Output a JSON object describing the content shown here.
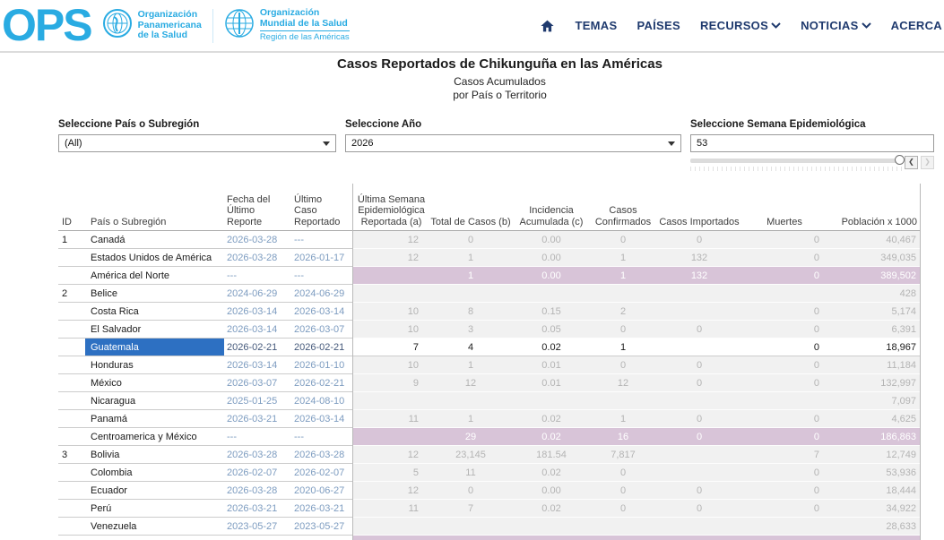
{
  "colors": {
    "brand_blue": "#29abe2",
    "nav_navy": "#1f3a6e",
    "selected_blue": "#2d70c2",
    "subtotal_purple": "#d8c4d8",
    "date_blue": "#7d9cc0"
  },
  "header": {
    "logo_text": "OPS",
    "org1": {
      "line1": "Organización",
      "line2": "Panamericana",
      "line3": "de la Salud"
    },
    "org2": {
      "line1": "Organización",
      "line2": "Mundial de la Salud",
      "sub": "Región de las Américas"
    },
    "nav": [
      {
        "label": "TEMAS",
        "chevron": false
      },
      {
        "label": "PAÍSES",
        "chevron": false
      },
      {
        "label": "RECURSOS",
        "chevron": true
      },
      {
        "label": "NOTICIAS",
        "chevron": true
      },
      {
        "label": "ACERCA",
        "chevron": false
      }
    ]
  },
  "title": {
    "main": "Casos Reportados de Chikunguña en las Américas",
    "sub1": "Casos Acumulados",
    "sub2": "por País o Territorio"
  },
  "filters": {
    "country": {
      "label": "Seleccione País o Subregión",
      "value": "(All)"
    },
    "year": {
      "label": "Seleccione Año",
      "value": "2026"
    },
    "week": {
      "label": "Seleccione Semana Epidemiológica",
      "value": "53"
    }
  },
  "table": {
    "columns": [
      {
        "key": "id",
        "label": "ID"
      },
      {
        "key": "country",
        "label": "País o Subregión"
      },
      {
        "key": "fecha",
        "label": "Fecha del\nÚltimo Reporte"
      },
      {
        "key": "ultimo_caso",
        "label": "Último\nCaso\nReportado"
      },
      {
        "key": "semana",
        "label": "Última Semana\nEpidemiológica\nReportada (a)"
      },
      {
        "key": "total",
        "label": "Total de Casos (b)"
      },
      {
        "key": "incidencia",
        "label": "Incidencia\nAcumulada (c)"
      },
      {
        "key": "confirmados",
        "label": "Casos\nConfirmados"
      },
      {
        "key": "importados",
        "label": "Casos Importados"
      },
      {
        "key": "muertes",
        "label": "Muertes"
      },
      {
        "key": "poblacion",
        "label": "Población x 1000"
      }
    ],
    "rows": [
      {
        "style": "normal",
        "id": "1",
        "country": "Canadá",
        "fecha": "2026-03-28",
        "ultimo_caso": "---",
        "semana": "12",
        "total": "0",
        "incidencia": "0.00",
        "confirmados": "0",
        "importados": "0",
        "muertes": "0",
        "poblacion": "40,467"
      },
      {
        "style": "normal",
        "id": "",
        "country": "Estados Unidos de América",
        "fecha": "2026-03-28",
        "ultimo_caso": "2026-01-17",
        "semana": "12",
        "total": "1",
        "incidencia": "0.00",
        "confirmados": "1",
        "importados": "132",
        "muertes": "0",
        "poblacion": "349,035"
      },
      {
        "style": "subtotal",
        "id": "",
        "country": "América del Norte",
        "fecha": "---",
        "ultimo_caso": "---",
        "semana": "",
        "total": "1",
        "incidencia": "0.00",
        "confirmados": "1",
        "importados": "132",
        "muertes": "0",
        "poblacion": "389,502"
      },
      {
        "style": "normal",
        "id": "2",
        "country": "Belice",
        "fecha": "2024-06-29",
        "ultimo_caso": "2024-06-29",
        "semana": "",
        "total": "",
        "incidencia": "",
        "confirmados": "",
        "importados": "",
        "muertes": "",
        "poblacion": "428"
      },
      {
        "style": "normal",
        "id": "",
        "country": "Costa Rica",
        "fecha": "2026-03-14",
        "ultimo_caso": "2026-03-14",
        "semana": "10",
        "total": "8",
        "incidencia": "0.15",
        "confirmados": "2",
        "importados": "",
        "muertes": "0",
        "poblacion": "5,174"
      },
      {
        "style": "normal",
        "id": "",
        "country": "El Salvador",
        "fecha": "2026-03-14",
        "ultimo_caso": "2026-03-07",
        "semana": "10",
        "total": "3",
        "incidencia": "0.05",
        "confirmados": "0",
        "importados": "0",
        "muertes": "0",
        "poblacion": "6,391"
      },
      {
        "style": "selected",
        "id": "",
        "country": "Guatemala",
        "fecha": "2026-02-21",
        "ultimo_caso": "2026-02-21",
        "semana": "7",
        "total": "4",
        "incidencia": "0.02",
        "confirmados": "1",
        "importados": "",
        "muertes": "0",
        "poblacion": "18,967"
      },
      {
        "style": "normal",
        "id": "",
        "country": "Honduras",
        "fecha": "2026-03-14",
        "ultimo_caso": "2026-01-10",
        "semana": "10",
        "total": "1",
        "incidencia": "0.01",
        "confirmados": "0",
        "importados": "0",
        "muertes": "0",
        "poblacion": "11,184"
      },
      {
        "style": "normal",
        "id": "",
        "country": "México",
        "fecha": "2026-03-07",
        "ultimo_caso": "2026-02-21",
        "semana": "9",
        "total": "12",
        "incidencia": "0.01",
        "confirmados": "12",
        "importados": "0",
        "muertes": "0",
        "poblacion": "132,997"
      },
      {
        "style": "normal",
        "id": "",
        "country": "Nicaragua",
        "fecha": "2025-01-25",
        "ultimo_caso": "2024-08-10",
        "semana": "",
        "total": "",
        "incidencia": "",
        "confirmados": "",
        "importados": "",
        "muertes": "",
        "poblacion": "7,097"
      },
      {
        "style": "normal",
        "id": "",
        "country": "Panamá",
        "fecha": "2026-03-21",
        "ultimo_caso": "2026-03-14",
        "semana": "11",
        "total": "1",
        "incidencia": "0.02",
        "confirmados": "1",
        "importados": "0",
        "muertes": "0",
        "poblacion": "4,625"
      },
      {
        "style": "subtotal",
        "id": "",
        "country": "Centroamerica y México",
        "fecha": "---",
        "ultimo_caso": "---",
        "semana": "",
        "total": "29",
        "incidencia": "0.02",
        "confirmados": "16",
        "importados": "0",
        "muertes": "0",
        "poblacion": "186,863"
      },
      {
        "style": "normal",
        "id": "3",
        "country": "Bolivia",
        "fecha": "2026-03-28",
        "ultimo_caso": "2026-03-28",
        "semana": "12",
        "total": "23,145",
        "incidencia": "181.54",
        "confirmados": "7,817",
        "importados": "",
        "muertes": "7",
        "poblacion": "12,749"
      },
      {
        "style": "normal",
        "id": "",
        "country": "Colombia",
        "fecha": "2026-02-07",
        "ultimo_caso": "2026-02-07",
        "semana": "5",
        "total": "11",
        "incidencia": "0.02",
        "confirmados": "0",
        "importados": "",
        "muertes": "0",
        "poblacion": "53,936"
      },
      {
        "style": "normal",
        "id": "",
        "country": "Ecuador",
        "fecha": "2026-03-28",
        "ultimo_caso": "2020-06-27",
        "semana": "12",
        "total": "0",
        "incidencia": "0.00",
        "confirmados": "0",
        "importados": "0",
        "muertes": "0",
        "poblacion": "18,444"
      },
      {
        "style": "normal",
        "id": "",
        "country": "Perú",
        "fecha": "2026-03-21",
        "ultimo_caso": "2026-03-21",
        "semana": "11",
        "total": "7",
        "incidencia": "0.02",
        "confirmados": "0",
        "importados": "0",
        "muertes": "0",
        "poblacion": "34,922"
      },
      {
        "style": "normal",
        "id": "",
        "country": "Venezuela",
        "fecha": "2023-05-27",
        "ultimo_caso": "2023-05-27",
        "semana": "",
        "total": "",
        "incidencia": "",
        "confirmados": "",
        "importados": "",
        "muertes": "",
        "poblacion": "28,633"
      },
      {
        "style": "partial",
        "id": "",
        "country": "",
        "fecha": "",
        "ultimo_caso": "",
        "semana": "",
        "total": "",
        "incidencia": "",
        "confirmados": "",
        "importados": "",
        "muertes": "",
        "poblacion": ""
      }
    ]
  }
}
